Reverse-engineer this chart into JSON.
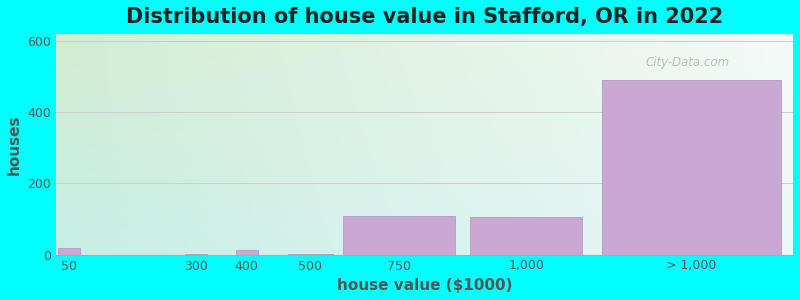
{
  "title": "Distribution of house value in Stafford, OR in 2022",
  "xlabel": "house value ($1000)",
  "ylabel": "houses",
  "background_color": "#00FFFF",
  "plot_bg_top_left": "#d4ecd0",
  "plot_bg_top_right": "#f5f5f5",
  "plot_bg_bottom_left": "#c8eee8",
  "plot_bg_bottom_right": "#e8f5f5",
  "bar_color": "#c9a8d4",
  "bar_edge_color": "#b090c0",
  "categories": [
    "50",
    "300",
    "400",
    "500",
    "750",
    "1,000",
    "> 1,000"
  ],
  "bar_lefts": [
    0,
    250,
    350,
    450,
    550,
    800,
    1050
  ],
  "bar_widths_data": [
    50,
    50,
    50,
    100,
    250,
    250,
    400
  ],
  "values": [
    18,
    2,
    12,
    2,
    110,
    105,
    490
  ],
  "xlim": [
    0,
    1450
  ],
  "ylim": [
    0,
    620
  ],
  "yticks": [
    0,
    200,
    400,
    600
  ],
  "xtick_positions": [
    25,
    275,
    375,
    500,
    675,
    925,
    1250
  ],
  "grid_color": "#cccccc",
  "title_fontsize": 15,
  "axis_label_fontsize": 11,
  "tick_fontsize": 9,
  "watermark_text": "City-Data.com"
}
